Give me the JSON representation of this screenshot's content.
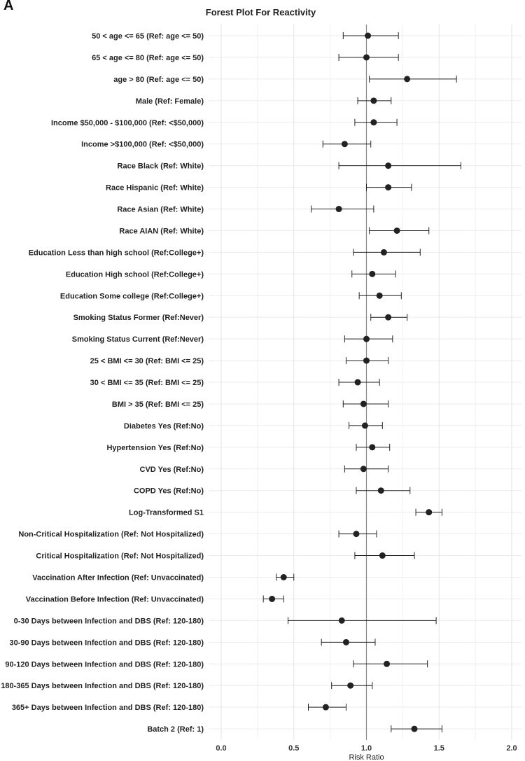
{
  "panel_label": "A",
  "chart_data": {
    "type": "forest",
    "title": "Forest Plot For Reactivity",
    "xlabel": "Risk Ratio",
    "xlim": [
      0.0,
      2.05
    ],
    "xticks": [
      "0.0",
      "0.5",
      "1.0",
      "1.5",
      "2.0"
    ],
    "xtick_values": [
      0.0,
      0.5,
      1.0,
      1.5,
      2.0
    ],
    "reference_line": 1.0,
    "grid": true,
    "rows": [
      {
        "label": "50 < age <= 65 (Ref: age <= 50)",
        "estimate": 1.01,
        "lower": 0.84,
        "upper": 1.22
      },
      {
        "label": "65 < age <= 80 (Ref: age <= 50)",
        "estimate": 1.0,
        "lower": 0.81,
        "upper": 1.22
      },
      {
        "label": "age > 80 (Ref: age <= 50)",
        "estimate": 1.28,
        "lower": 1.02,
        "upper": 1.62
      },
      {
        "label": "Male (Ref: Female)",
        "estimate": 1.05,
        "lower": 0.94,
        "upper": 1.17
      },
      {
        "label": "Income $50,000 - $100,000 (Ref: <$50,000)",
        "estimate": 1.05,
        "lower": 0.92,
        "upper": 1.21
      },
      {
        "label": "Income >$100,000 (Ref: <$50,000)",
        "estimate": 0.85,
        "lower": 0.7,
        "upper": 1.03
      },
      {
        "label": "Race Black (Ref: White)",
        "estimate": 1.15,
        "lower": 0.81,
        "upper": 1.65
      },
      {
        "label": "Race Hispanic (Ref: White)",
        "estimate": 1.15,
        "lower": 1.0,
        "upper": 1.31
      },
      {
        "label": "Race Asian (Ref: White)",
        "estimate": 0.81,
        "lower": 0.62,
        "upper": 1.05
      },
      {
        "label": "Race AIAN (Ref: White)",
        "estimate": 1.21,
        "lower": 1.02,
        "upper": 1.43
      },
      {
        "label": "Education Less than high school (Ref:College+)",
        "estimate": 1.12,
        "lower": 0.91,
        "upper": 1.37
      },
      {
        "label": "Education High school (Ref:College+)",
        "estimate": 1.04,
        "lower": 0.9,
        "upper": 1.2
      },
      {
        "label": "Education Some college (Ref:College+)",
        "estimate": 1.09,
        "lower": 0.95,
        "upper": 1.24
      },
      {
        "label": "Smoking Status Former (Ref:Never)",
        "estimate": 1.15,
        "lower": 1.03,
        "upper": 1.28
      },
      {
        "label": "Smoking Status Current (Ref:Never)",
        "estimate": 1.0,
        "lower": 0.85,
        "upper": 1.18
      },
      {
        "label": "25 < BMI <= 30 (Ref: BMI <= 25)",
        "estimate": 1.0,
        "lower": 0.86,
        "upper": 1.15
      },
      {
        "label": "30 < BMI <= 35 (Ref: BMI <= 25)",
        "estimate": 0.94,
        "lower": 0.81,
        "upper": 1.09
      },
      {
        "label": "BMI > 35 (Ref: BMI <= 25)",
        "estimate": 0.98,
        "lower": 0.84,
        "upper": 1.15
      },
      {
        "label": "Diabetes Yes (Ref:No)",
        "estimate": 0.99,
        "lower": 0.88,
        "upper": 1.11
      },
      {
        "label": "Hypertension Yes (Ref:No)",
        "estimate": 1.04,
        "lower": 0.93,
        "upper": 1.16
      },
      {
        "label": "CVD Yes (Ref:No)",
        "estimate": 0.98,
        "lower": 0.85,
        "upper": 1.15
      },
      {
        "label": "COPD Yes (Ref:No)",
        "estimate": 1.1,
        "lower": 0.93,
        "upper": 1.3
      },
      {
        "label": "Log-Transformed S1",
        "estimate": 1.43,
        "lower": 1.34,
        "upper": 1.52
      },
      {
        "label": "Non-Critical Hospitalization (Ref: Not Hospitalized)",
        "estimate": 0.93,
        "lower": 0.81,
        "upper": 1.07
      },
      {
        "label": "Critical Hospitalization (Ref: Not Hospitalized)",
        "estimate": 1.11,
        "lower": 0.92,
        "upper": 1.33
      },
      {
        "label": "Vaccination After Infection (Ref: Unvaccinated)",
        "estimate": 0.43,
        "lower": 0.38,
        "upper": 0.5
      },
      {
        "label": "Vaccination Before Infection (Ref: Unvaccinated)",
        "estimate": 0.35,
        "lower": 0.29,
        "upper": 0.43
      },
      {
        "label": "0-30 Days between Infection and DBS (Ref: 120-180)",
        "estimate": 0.83,
        "lower": 0.46,
        "upper": 1.48
      },
      {
        "label": "30-90 Days between Infection and DBS (Ref: 120-180)",
        "estimate": 0.86,
        "lower": 0.69,
        "upper": 1.06
      },
      {
        "label": "90-120 Days between Infection and DBS (Ref: 120-180)",
        "estimate": 1.14,
        "lower": 0.91,
        "upper": 1.42
      },
      {
        "label": "180-365 Days between Infection and DBS (Ref: 120-180)",
        "estimate": 0.89,
        "lower": 0.76,
        "upper": 1.04
      },
      {
        "label": "365+ Days between Infection and DBS (Ref: 120-180)",
        "estimate": 0.72,
        "lower": 0.6,
        "upper": 0.86
      },
      {
        "label": "Batch 2 (Ref: 1)",
        "estimate": 1.33,
        "lower": 1.17,
        "upper": 1.52
      }
    ]
  }
}
